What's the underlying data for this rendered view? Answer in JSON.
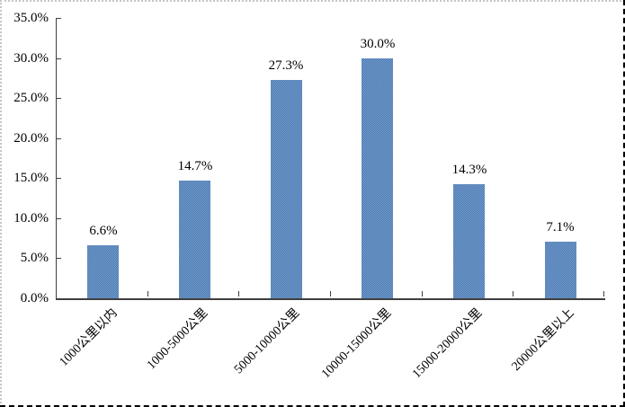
{
  "chart_data": {
    "type": "bar",
    "title": "",
    "xlabel": "",
    "ylabel": "",
    "categories": [
      "1000公里以内",
      "1000-5000公里",
      "5000-10000公里",
      "10000-15000公里",
      "15000-20000公里",
      "20000公里以上"
    ],
    "values": [
      6.6,
      14.7,
      27.3,
      30.0,
      14.3,
      7.1
    ],
    "value_labels": [
      "6.6%",
      "14.7%",
      "27.3%",
      "30.0%",
      "14.3%",
      "7.1%"
    ],
    "y_ticks": [
      {
        "value": 0,
        "label": "0.0%"
      },
      {
        "value": 5,
        "label": "5.0%"
      },
      {
        "value": 10,
        "label": "10.0%"
      },
      {
        "value": 15,
        "label": "15.0%"
      },
      {
        "value": 20,
        "label": "20.0%"
      },
      {
        "value": 25,
        "label": "25.0%"
      },
      {
        "value": 30,
        "label": "30.0%"
      },
      {
        "value": 35,
        "label": "35.0%"
      }
    ],
    "ylim": [
      0,
      35
    ],
    "grid": "off",
    "legend": "none",
    "bar_color": "#4f81bd",
    "axis_color": "#3f3f3f",
    "text_color": "#000000"
  }
}
